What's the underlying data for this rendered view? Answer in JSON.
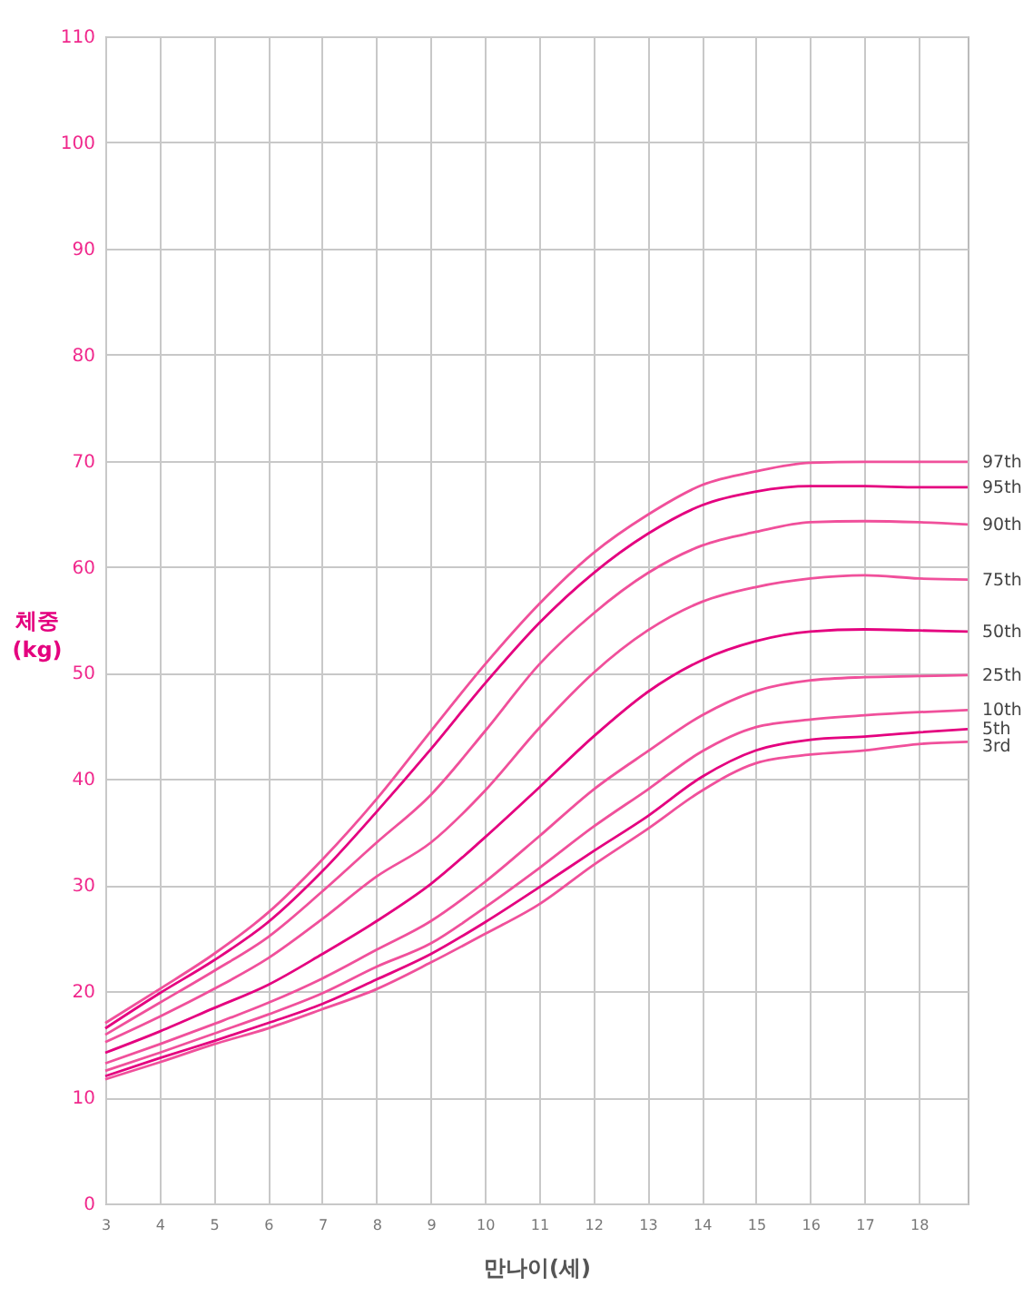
{
  "chart_data": {
    "type": "line",
    "xlabel": "만나이(세)",
    "ylabel": "체중 (kg)",
    "x": [
      3,
      4,
      5,
      6,
      7,
      8,
      9,
      10,
      11,
      12,
      13,
      14,
      15,
      16,
      17,
      18,
      18.9
    ],
    "xlim": [
      3,
      18.9
    ],
    "xticks": [
      3,
      4,
      5,
      6,
      7,
      8,
      9,
      10,
      11,
      12,
      13,
      14,
      15,
      16,
      17,
      18
    ],
    "ylim": [
      0,
      110
    ],
    "yticks": [
      0,
      10,
      20,
      30,
      40,
      50,
      60,
      70,
      80,
      90,
      100,
      110
    ],
    "grid": true,
    "legend": false,
    "marker": "none",
    "line_style": "solid",
    "series": [
      {
        "name": "97th",
        "color": "#f0509b",
        "values": [
          17.0,
          20.2,
          23.5,
          27.4,
          32.4,
          38.1,
          44.5,
          50.8,
          56.5,
          61.3,
          64.9,
          67.7,
          69.0,
          69.8,
          69.9,
          69.9,
          69.9
        ]
      },
      {
        "name": "95th",
        "color": "#e4007f",
        "values": [
          16.5,
          19.8,
          22.9,
          26.5,
          31.3,
          36.9,
          42.8,
          49.0,
          54.7,
          59.4,
          63.1,
          65.8,
          67.1,
          67.6,
          67.6,
          67.5,
          67.5
        ]
      },
      {
        "name": "90th",
        "color": "#f0509b",
        "values": [
          15.9,
          18.9,
          21.9,
          25.1,
          29.4,
          34.0,
          38.5,
          44.5,
          50.8,
          55.6,
          59.4,
          62.0,
          63.3,
          64.2,
          64.3,
          64.2,
          64.0
        ]
      },
      {
        "name": "75th",
        "color": "#f0509b",
        "values": [
          15.2,
          17.6,
          20.2,
          23.1,
          26.8,
          30.8,
          34.0,
          38.9,
          44.8,
          50.0,
          54.0,
          56.7,
          58.1,
          58.9,
          59.2,
          58.9,
          58.8
        ]
      },
      {
        "name": "50th",
        "color": "#e4007f",
        "values": [
          14.2,
          16.2,
          18.4,
          20.6,
          23.5,
          26.6,
          30.1,
          34.5,
          39.2,
          44.0,
          48.2,
          51.2,
          53.0,
          53.9,
          54.1,
          54.0,
          53.9
        ]
      },
      {
        "name": "25th",
        "color": "#f0509b",
        "values": [
          13.2,
          15.0,
          16.9,
          18.9,
          21.2,
          23.9,
          26.6,
          30.3,
          34.6,
          39.0,
          42.6,
          46.0,
          48.3,
          49.3,
          49.6,
          49.7,
          49.8
        ]
      },
      {
        "name": "10th",
        "color": "#f0509b",
        "values": [
          12.5,
          14.2,
          16.0,
          17.8,
          19.8,
          22.3,
          24.5,
          27.9,
          31.6,
          35.5,
          39.0,
          42.6,
          44.9,
          45.6,
          46.0,
          46.3,
          46.5
        ]
      },
      {
        "name": "5th",
        "color": "#e4007f",
        "values": [
          12.0,
          13.7,
          15.3,
          17.0,
          18.8,
          21.1,
          23.5,
          26.5,
          29.8,
          33.2,
          36.5,
          40.2,
          42.7,
          43.7,
          44.0,
          44.4,
          44.7
        ]
      },
      {
        "name": "3rd",
        "color": "#f0509b",
        "values": [
          11.7,
          13.3,
          15.0,
          16.5,
          18.3,
          20.2,
          22.7,
          25.4,
          28.2,
          31.9,
          35.3,
          38.9,
          41.5,
          42.3,
          42.7,
          43.3,
          43.5
        ]
      }
    ]
  }
}
